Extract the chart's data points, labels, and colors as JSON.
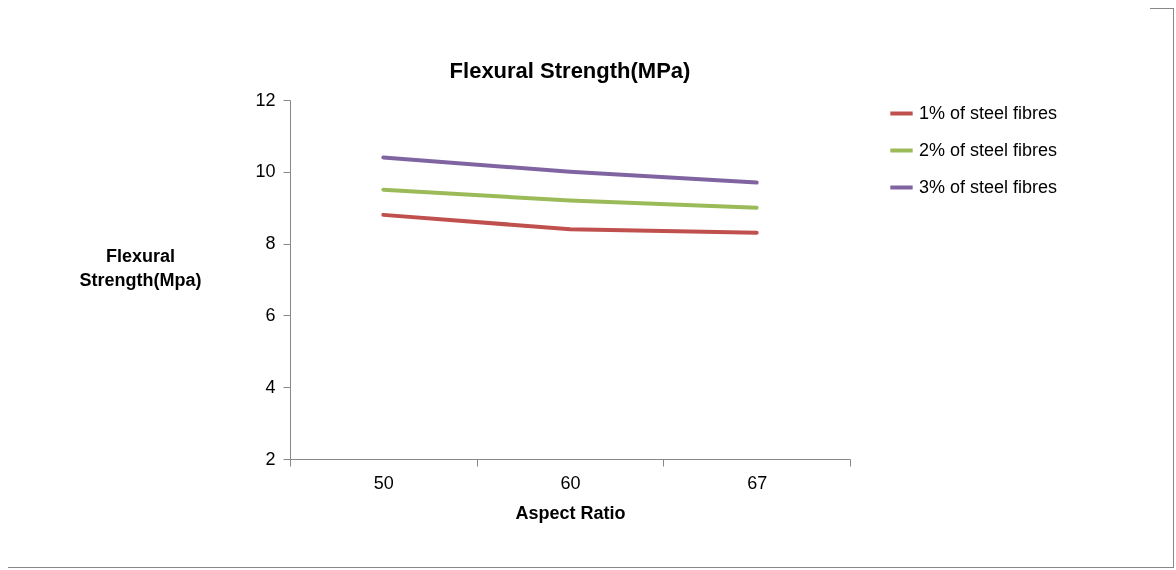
{
  "chart_data": {
    "type": "line",
    "title": "Flexural Strength(MPa)",
    "xlabel": "Aspect Ratio",
    "ylabel": "Flexural Strength(Mpa)",
    "categories": [
      "50",
      "60",
      "67"
    ],
    "series": [
      {
        "name": "1% of steel fibres",
        "color": "#c0504d",
        "values": [
          8.8,
          8.4,
          8.3
        ]
      },
      {
        "name": "2% of steel fibres",
        "color": "#9bbb59",
        "values": [
          9.5,
          9.2,
          9.0
        ]
      },
      {
        "name": "3% of steel fibres",
        "color": "#8064a2",
        "values": [
          10.4,
          10.0,
          9.7
        ]
      }
    ],
    "ylim": [
      2,
      12
    ],
    "yticks": [
      2,
      4,
      6,
      8,
      10,
      12
    ],
    "grid": false,
    "legend": "right",
    "marker": "none",
    "line_style": "solid"
  }
}
